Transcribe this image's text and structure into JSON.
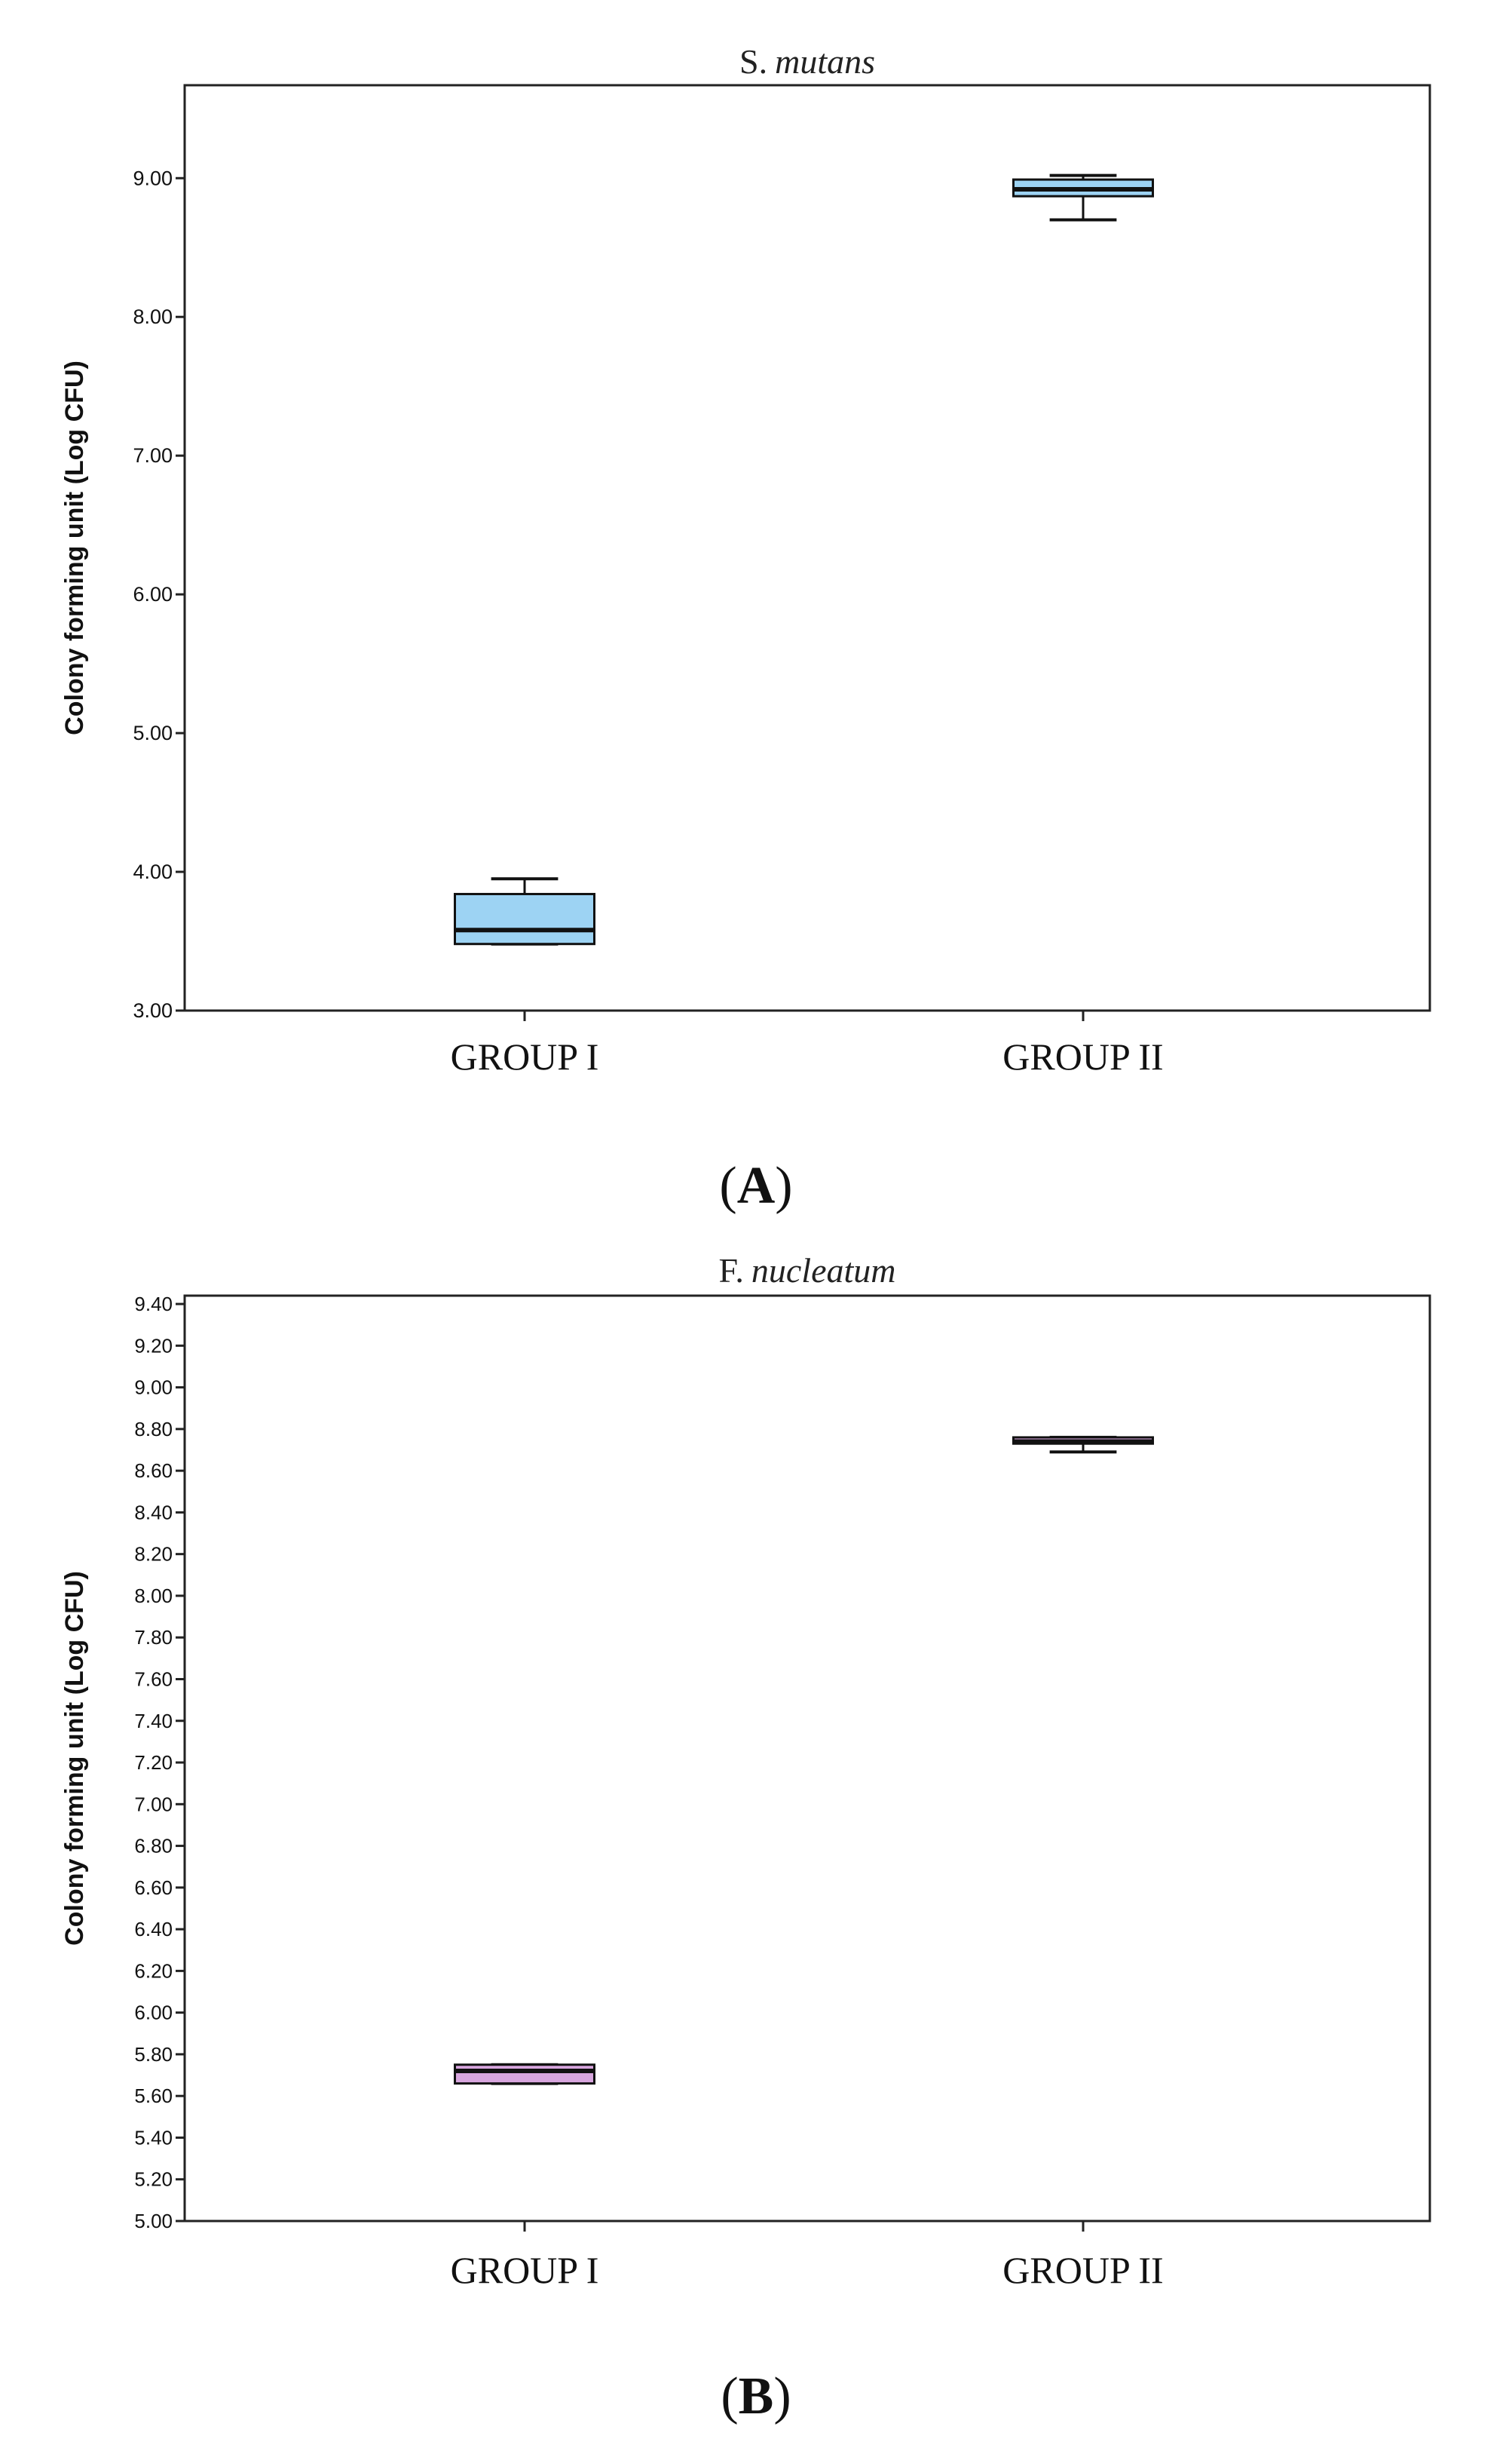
{
  "chart_data": [
    {
      "type": "boxplot",
      "panel_label": "A",
      "title": {
        "prefix": "S.",
        "italic": "mutans"
      },
      "ylabel": "Colony forming unit (Log CFU)",
      "xlabel": "",
      "ylim": [
        3.0,
        9.67
      ],
      "yticks": [
        "3.00",
        "4.00",
        "5.00",
        "6.00",
        "7.00",
        "8.00",
        "9.00"
      ],
      "grid": false,
      "categories": [
        "GROUP I",
        "GROUP II"
      ],
      "boxes": [
        {
          "category": "GROUP I",
          "min": 3.48,
          "q1": 3.48,
          "median": 3.58,
          "q3": 3.84,
          "max": 3.95,
          "color": "#9dd3f3"
        },
        {
          "category": "GROUP II",
          "min": 8.7,
          "q1": 8.87,
          "median": 8.92,
          "q3": 8.99,
          "max": 9.02,
          "color": "#9dd3f3"
        }
      ]
    },
    {
      "type": "boxplot",
      "panel_label": "B",
      "title": {
        "prefix": "F.",
        "italic": "nucleatum"
      },
      "ylabel": "Colony forming unit (Log CFU)",
      "xlabel": "",
      "ylim": [
        5.0,
        9.44
      ],
      "yticks": [
        "5.00",
        "5.20",
        "5.40",
        "5.60",
        "5.80",
        "6.00",
        "6.20",
        "6.40",
        "6.60",
        "6.80",
        "7.00",
        "7.20",
        "7.40",
        "7.60",
        "7.80",
        "8.00",
        "8.20",
        "8.40",
        "8.60",
        "8.80",
        "9.00",
        "9.20",
        "9.40"
      ],
      "grid": false,
      "categories": [
        "GROUP I",
        "GROUP II"
      ],
      "boxes": [
        {
          "category": "GROUP I",
          "min": 5.66,
          "q1": 5.66,
          "median": 5.72,
          "q3": 5.75,
          "max": 5.75,
          "color": "#d8a6de"
        },
        {
          "category": "GROUP II",
          "min": 8.69,
          "q1": 8.73,
          "median": 8.74,
          "q3": 8.76,
          "max": 8.76,
          "color": "#d8a6de"
        }
      ]
    }
  ]
}
